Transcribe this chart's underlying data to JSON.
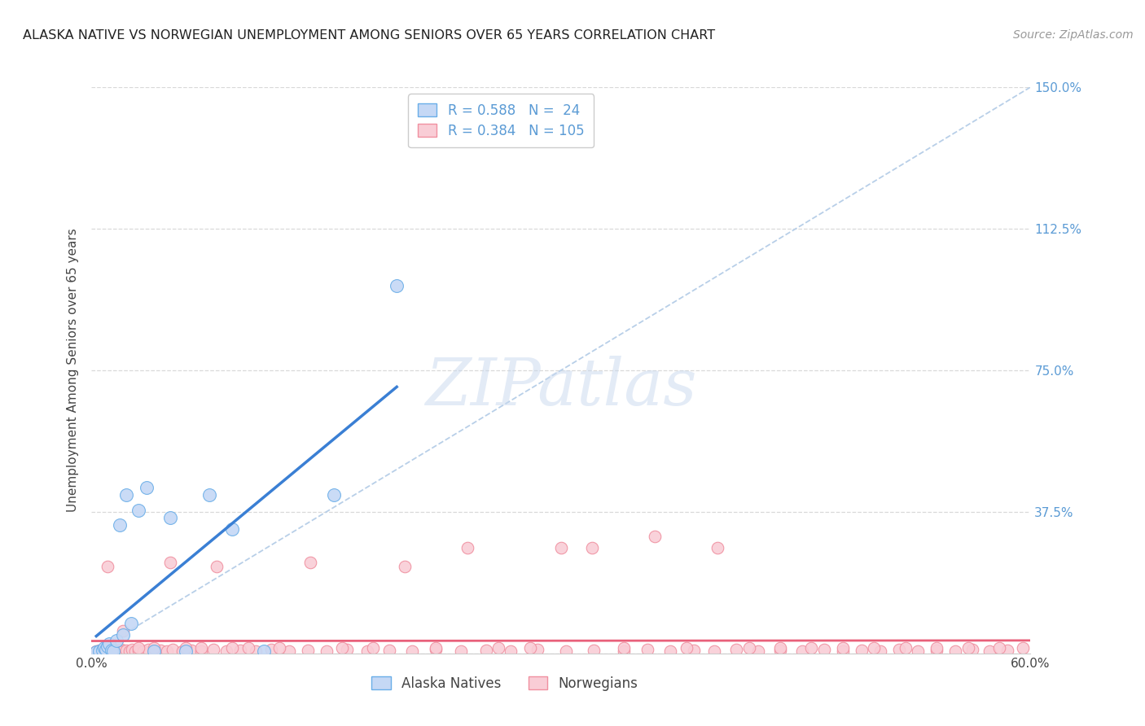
{
  "title": "ALASKA NATIVE VS NORWEGIAN UNEMPLOYMENT AMONG SENIORS OVER 65 YEARS CORRELATION CHART",
  "source": "Source: ZipAtlas.com",
  "ylabel_label": "Unemployment Among Seniors over 65 years",
  "xlim": [
    0.0,
    0.6
  ],
  "ylim": [
    0.0,
    1.5
  ],
  "yticks": [
    0.0,
    0.375,
    0.75,
    1.125,
    1.5
  ],
  "yticklabels": [
    "",
    "37.5%",
    "75.0%",
    "112.5%",
    "150.0%"
  ],
  "background_color": "#ffffff",
  "grid_color": "#d0d0d0",
  "legend_R_alaska": "0.588",
  "legend_N_alaska": "24",
  "legend_R_norwegian": "0.384",
  "legend_N_norwegian": "105",
  "alaska_fill_color": "#c5d8f5",
  "alaska_edge_color": "#6aaee8",
  "norwegian_fill_color": "#f9cdd6",
  "norwegian_edge_color": "#f090a0",
  "alaska_line_color": "#3a7fd4",
  "norwegian_line_color": "#e8607a",
  "diagonal_color": "#b8cfe8",
  "alaska_x": [
    0.003,
    0.005,
    0.007,
    0.008,
    0.009,
    0.01,
    0.011,
    0.013,
    0.014,
    0.016,
    0.018,
    0.02,
    0.022,
    0.025,
    0.03,
    0.035,
    0.04,
    0.05,
    0.06,
    0.075,
    0.09,
    0.11,
    0.155,
    0.195
  ],
  "alaska_y": [
    0.003,
    0.005,
    0.008,
    0.015,
    0.01,
    0.018,
    0.025,
    0.008,
    0.005,
    0.035,
    0.34,
    0.05,
    0.42,
    0.08,
    0.38,
    0.44,
    0.005,
    0.36,
    0.005,
    0.42,
    0.33,
    0.005,
    0.42,
    0.975
  ],
  "norwegian_x": [
    0.003,
    0.005,
    0.006,
    0.007,
    0.008,
    0.009,
    0.01,
    0.011,
    0.012,
    0.013,
    0.014,
    0.015,
    0.016,
    0.017,
    0.018,
    0.019,
    0.02,
    0.022,
    0.024,
    0.026,
    0.028,
    0.03,
    0.033,
    0.036,
    0.04,
    0.044,
    0.048,
    0.052,
    0.058,
    0.064,
    0.07,
    0.078,
    0.086,
    0.095,
    0.105,
    0.115,
    0.126,
    0.138,
    0.15,
    0.163,
    0.176,
    0.19,
    0.205,
    0.22,
    0.236,
    0.252,
    0.268,
    0.285,
    0.303,
    0.321,
    0.34,
    0.355,
    0.37,
    0.385,
    0.398,
    0.412,
    0.426,
    0.44,
    0.454,
    0.468,
    0.48,
    0.492,
    0.504,
    0.516,
    0.528,
    0.54,
    0.552,
    0.563,
    0.574,
    0.585,
    0.01,
    0.02,
    0.03,
    0.04,
    0.05,
    0.06,
    0.07,
    0.08,
    0.09,
    0.1,
    0.12,
    0.14,
    0.16,
    0.18,
    0.2,
    0.22,
    0.24,
    0.26,
    0.28,
    0.3,
    0.32,
    0.34,
    0.36,
    0.38,
    0.4,
    0.42,
    0.44,
    0.46,
    0.48,
    0.5,
    0.52,
    0.54,
    0.56,
    0.58,
    0.595
  ],
  "norwegian_y": [
    0.005,
    0.008,
    0.005,
    0.01,
    0.005,
    0.008,
    0.005,
    0.01,
    0.005,
    0.008,
    0.005,
    0.01,
    0.005,
    0.008,
    0.005,
    0.01,
    0.005,
    0.008,
    0.005,
    0.01,
    0.005,
    0.008,
    0.005,
    0.01,
    0.005,
    0.008,
    0.005,
    0.01,
    0.005,
    0.008,
    0.005,
    0.01,
    0.005,
    0.008,
    0.005,
    0.01,
    0.005,
    0.008,
    0.005,
    0.01,
    0.005,
    0.008,
    0.005,
    0.01,
    0.005,
    0.008,
    0.005,
    0.01,
    0.005,
    0.008,
    0.005,
    0.01,
    0.005,
    0.008,
    0.005,
    0.01,
    0.005,
    0.008,
    0.005,
    0.01,
    0.005,
    0.008,
    0.005,
    0.01,
    0.005,
    0.008,
    0.005,
    0.01,
    0.005,
    0.008,
    0.23,
    0.06,
    0.015,
    0.015,
    0.24,
    0.015,
    0.015,
    0.23,
    0.015,
    0.015,
    0.015,
    0.24,
    0.015,
    0.015,
    0.23,
    0.015,
    0.28,
    0.015,
    0.015,
    0.28,
    0.28,
    0.015,
    0.31,
    0.015,
    0.28,
    0.015,
    0.015,
    0.015,
    0.015,
    0.015,
    0.015,
    0.015,
    0.015,
    0.015,
    0.015
  ]
}
